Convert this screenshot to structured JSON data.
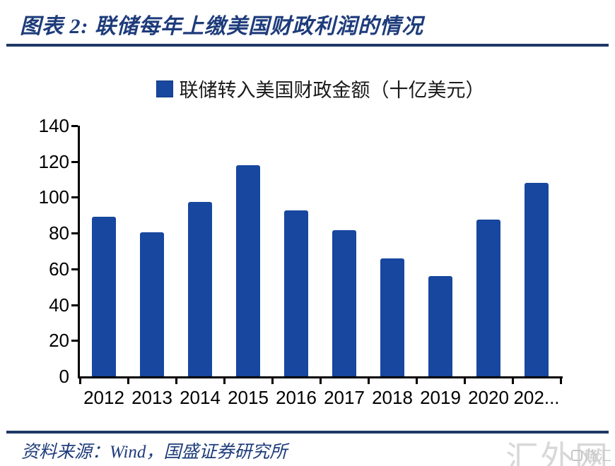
{
  "header": {
    "title": "图表 2:  联储每年上缴美国财政利润的情况"
  },
  "legend": {
    "label": "联储转入美国财政金额（十亿美元）",
    "swatch_color": "#17479E"
  },
  "chart_data": {
    "type": "bar",
    "title": "联储转入美国财政金额（十亿美元）",
    "categories": [
      "2012",
      "2013",
      "2014",
      "2015",
      "2016",
      "2017",
      "2018",
      "2019",
      "2020",
      "202..."
    ],
    "values": [
      89,
      80.5,
      97.5,
      118,
      92.5,
      81.5,
      66,
      56,
      87.5,
      108
    ],
    "xlabel": "",
    "ylabel": "",
    "ylim": [
      0,
      140
    ],
    "yticks": [
      0,
      20,
      40,
      60,
      80,
      100,
      120,
      140
    ],
    "bar_color": "#17479E",
    "grid": false,
    "legend_position": "top-center"
  },
  "footer": {
    "source": "资料来源：Wind，国盛证券研究所"
  },
  "watermarks": {
    "primary": "汇外网",
    "secondary": "隆汇"
  },
  "colors": {
    "accent_navy": "#1F3864",
    "title_text": "#1E3C7B",
    "bar_blue": "#17479E",
    "axis_text": "#000000",
    "watermark_gray": "#D8D8D8"
  }
}
